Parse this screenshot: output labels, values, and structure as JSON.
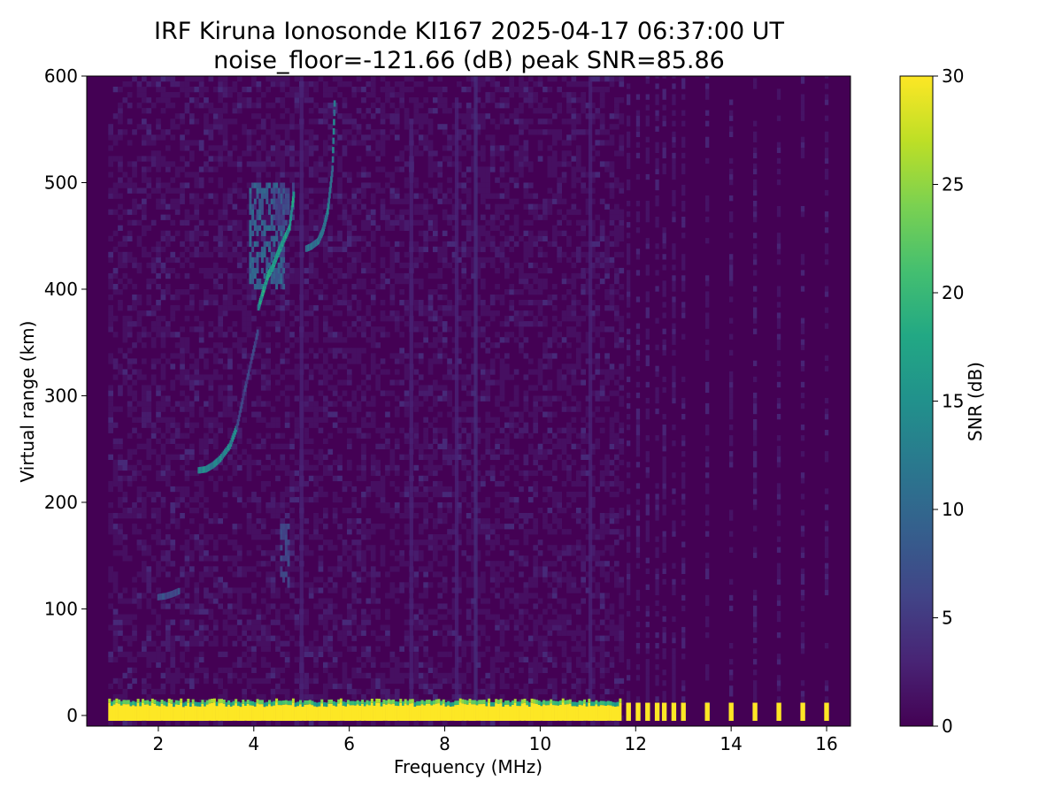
{
  "chart_data": {
    "type": "heatmap",
    "title": "IRF Kiruna Ionosonde KI167 2025-04-17 06:37:00  UT",
    "subtitle": "noise_floor=-121.66 (dB) peak SNR=85.86",
    "xlabel": "Frequency (MHz)",
    "ylabel": "Virtual range (km)",
    "xlim": [
      0.5,
      16.5
    ],
    "ylim": [
      -10,
      600
    ],
    "xticks": [
      2,
      4,
      6,
      8,
      10,
      12,
      14,
      16
    ],
    "yticks": [
      0,
      100,
      200,
      300,
      400,
      500,
      600
    ],
    "grid": false,
    "colorbar": {
      "label": "SNR (dB)",
      "range": [
        0,
        30
      ],
      "ticks": [
        0,
        5,
        10,
        15,
        20,
        25,
        30
      ],
      "colormap": "viridis"
    },
    "data_start_freq_mhz": 0.95,
    "dense_sweep_end_mhz": 11.7,
    "sparse_freqs_mhz": [
      11.85,
      12.05,
      12.25,
      12.45,
      12.6,
      12.8,
      13.0,
      13.5,
      14.0,
      14.5,
      15.0,
      15.5,
      16.0
    ],
    "ground_echo_km": [
      -5,
      8
    ],
    "echo_traces": [
      {
        "freq_mhz": [
          2.85,
          3.0,
          3.15,
          3.3,
          3.5,
          3.65
        ],
        "range_km": [
          227,
          228,
          232,
          238,
          250,
          268
        ],
        "snr_db": 14
      },
      {
        "freq_mhz": [
          3.65,
          3.8,
          3.95,
          4.1
        ],
        "range_km": [
          268,
          300,
          330,
          360
        ],
        "snr_db": 6
      },
      {
        "freq_mhz": [
          4.1,
          4.2,
          4.3,
          4.4,
          4.5,
          4.6,
          4.75,
          4.85
        ],
        "range_km": [
          380,
          395,
          410,
          418,
          430,
          440,
          455,
          490
        ],
        "snr_db": 17
      },
      {
        "freq_mhz": [
          5.1,
          5.2,
          5.35,
          5.45,
          5.55,
          5.65,
          5.7
        ],
        "range_km": [
          435,
          437,
          442,
          452,
          470,
          510,
          580
        ],
        "snr_db": 12
      },
      {
        "freq_mhz": [
          2.0,
          2.15,
          2.3,
          2.45
        ],
        "range_km": [
          108,
          109,
          111,
          114
        ],
        "snr_db": 7
      }
    ],
    "diffuse_regions": [
      {
        "freq_mhz": [
          3.9,
          4.6
        ],
        "range_km": [
          400,
          500
        ],
        "snr_db": 9
      },
      {
        "freq_mhz": [
          4.4,
          4.8
        ],
        "range_km": [
          460,
          500
        ],
        "snr_db": 6
      },
      {
        "freq_mhz": [
          4.55,
          4.7
        ],
        "range_km": [
          120,
          180
        ],
        "snr_db": 6
      }
    ],
    "vertical_streaks": [
      {
        "freq_mhz": 4.6,
        "range_km": [
          400,
          500
        ],
        "snr_db": 6
      },
      {
        "freq_mhz": 5.0,
        "range_km": [
          0,
          600
        ],
        "snr_db": 3
      },
      {
        "freq_mhz": 7.3,
        "range_km": [
          0,
          560
        ],
        "snr_db": 3
      },
      {
        "freq_mhz": 8.25,
        "range_km": [
          0,
          580
        ],
        "snr_db": 3
      },
      {
        "freq_mhz": 8.65,
        "range_km": [
          0,
          600
        ],
        "snr_db": 4
      },
      {
        "freq_mhz": 11.05,
        "range_km": [
          0,
          600
        ],
        "snr_db": 3
      }
    ]
  }
}
